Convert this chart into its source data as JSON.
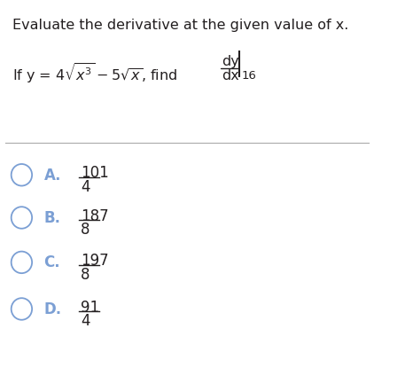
{
  "title": "Evaluate the derivative at the given value of x.",
  "options": [
    {
      "letter": "A.",
      "numerator": "101",
      "denominator": "4"
    },
    {
      "letter": "B.",
      "numerator": "187",
      "denominator": "8"
    },
    {
      "letter": "C.",
      "numerator": "197",
      "denominator": "8"
    },
    {
      "letter": "D.",
      "numerator": "91",
      "denominator": "4"
    }
  ],
  "circle_color": "#7b9fd4",
  "text_color": "#231f20",
  "bg_color": "#ffffff",
  "title_fontsize": 11.5,
  "body_fontsize": 11.5,
  "option_fontsize": 12,
  "sep_line_color": "#aaaaaa"
}
